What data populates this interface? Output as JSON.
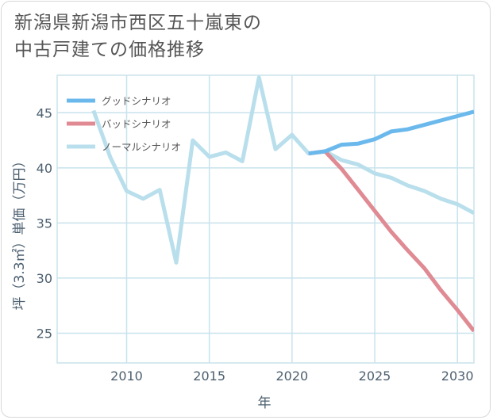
{
  "title": {
    "line1": "新潟県新潟市西区五十嵐東の",
    "line2": "中古戸建ての価格推移"
  },
  "colors": {
    "good": "#6bb9ec",
    "bad": "#e08a93",
    "normal": "#b9dfec",
    "grid": "#c8e3ec",
    "tick_text": "#4d6070",
    "axis_label": "#4d6070"
  },
  "chart_data": {
    "type": "line",
    "title": "新潟県新潟市西区五十嵐東の中古戸建ての価格推移",
    "xlabel": "年",
    "ylabel": "坪（3.3㎡）単価（万円）",
    "xlim": [
      2005.8,
      2031
    ],
    "ylim": [
      22.3,
      48.4
    ],
    "xticks": [
      2010,
      2015,
      2020,
      2025,
      2030
    ],
    "yticks": [
      25,
      30,
      35,
      40,
      45
    ],
    "grid": true,
    "legend_position": "top-left",
    "series": [
      {
        "name": "グッドシナリオ",
        "color": "#6bb9ec",
        "x": [
          2021,
          2022,
          2023,
          2024,
          2025,
          2026,
          2027,
          2028,
          2029,
          2030,
          2031
        ],
        "y": [
          41.3,
          41.5,
          42.1,
          42.2,
          42.6,
          43.3,
          43.5,
          43.9,
          44.3,
          44.7,
          45.1
        ]
      },
      {
        "name": "バッドシナリオ",
        "color": "#e08a93",
        "x": [
          2021,
          2022,
          2023,
          2024,
          2025,
          2026,
          2027,
          2028,
          2029,
          2030,
          2031
        ],
        "y": [
          41.3,
          41.5,
          39.9,
          38.0,
          36.1,
          34.2,
          32.5,
          30.9,
          28.9,
          27.1,
          25.2
        ]
      },
      {
        "name": "ノーマルシナリオ",
        "color": "#b9dfec",
        "x": [
          2008,
          2009,
          2010,
          2011,
          2012,
          2013,
          2014,
          2015,
          2016,
          2017,
          2018,
          2019,
          2020,
          2021,
          2022,
          2023,
          2024,
          2025,
          2026,
          2027,
          2028,
          2029,
          2030,
          2031
        ],
        "y": [
          45.2,
          41.0,
          37.9,
          37.2,
          38.0,
          31.4,
          42.5,
          41.0,
          41.4,
          40.6,
          48.2,
          41.7,
          43.0,
          41.3,
          41.5,
          40.7,
          40.3,
          39.5,
          39.1,
          38.4,
          37.9,
          37.2,
          36.7,
          35.9
        ]
      }
    ]
  }
}
